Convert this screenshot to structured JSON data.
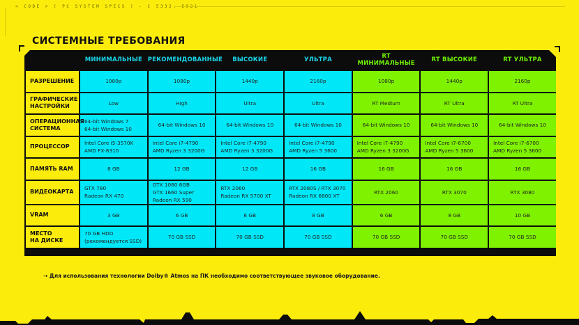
{
  "header_code": "< CODE > ( PC SYSTEM SPECS ) - C 5332. 5921",
  "title": "СИСТЕМНЫЕ ТРЕБОВАНИЯ",
  "colors": {
    "background": "#fcec0c",
    "cyan": "#00e8f8",
    "green": "#7ff200",
    "header_bg": "#0c0c0c"
  },
  "columns": [
    {
      "label": "МИНИМАЛЬНЫЕ",
      "group": "cyan"
    },
    {
      "label": "РЕКОМЕНДОВАННЫЕ",
      "group": "cyan"
    },
    {
      "label": "ВЫСОКИЕ",
      "group": "cyan"
    },
    {
      "label": "УЛЬТРА",
      "group": "cyan"
    },
    {
      "label": "RT МИНИМАЛЬНЫЕ",
      "group": "green"
    },
    {
      "label": "RT ВЫСОКИЕ",
      "group": "green"
    },
    {
      "label": "RT УЛЬТРА",
      "group": "green"
    }
  ],
  "rows": [
    {
      "label": "РАЗРЕШЕНИЕ",
      "cells": [
        "1080p",
        "1080p",
        "1440p",
        "2160p",
        "1080p",
        "1440p",
        "2160p"
      ]
    },
    {
      "label": "ГРАФИЧЕСКИЕ\nНАСТРОЙКИ",
      "cells": [
        "Low",
        "High",
        "Ultra",
        "Ultra",
        "RT Medium",
        "RT Ultra",
        "RT Ultra"
      ]
    },
    {
      "label": "ОПЕРАЦИОННАЯ\nСИСТЕМА",
      "cells": [
        "64-bit Windows 7\n64-bit Windows 10",
        "64-bit Windows 10",
        "64-bit Windows 10",
        "64-bit Windows 10",
        "64-bit Windows 10",
        "64-bit Windows 10",
        "64-bit Windows 10"
      ]
    },
    {
      "label": "ПРОЦЕССОР",
      "cells": [
        "Intel Core i5-3570K\nAMD FX-8310",
        "Intel Core i7-4790\nAMD Ryzen 3 3200G",
        "Intel Core i7-4790\nAMD Ryzen 3 3200G",
        "Intel Core i7-4790\nAMD Ryzen 5 3600",
        "Intel Core i7-4790\nAMD Ryzen 3 3200G",
        "Intel Core i7-6700\nAMD Ryzen 5 3600",
        "Intel Core i7-6700\nAMD Ryzen 5 3600"
      ]
    },
    {
      "label": "ПАМЯТЬ RAM",
      "cells": [
        "8 GB",
        "12 GB",
        "12 GB",
        "16 GB",
        "16 GB",
        "16 GB",
        "16 GB"
      ]
    },
    {
      "label": "ВИДЕОКАРТА",
      "cells": [
        "GTX 780\nRadeon RX 470",
        "GTX 1060 6GB\nGTX 1660 Super\nRadeon RX 590",
        "RTX 2060\nRadeon RX 5700 XT",
        "RTX 2080S / RTX 3070\nRadeon RX 6800 XT",
        "RTX 2060",
        "RTX 3070",
        "RTX 3080"
      ]
    },
    {
      "label": "VRAM",
      "cells": [
        "3 GB",
        "6 GB",
        "6 GB",
        "8 GB",
        "6 GB",
        "8 GB",
        "10 GB"
      ]
    },
    {
      "label": "МЕСТО\nНА ДИСКЕ",
      "cells": [
        "70 GB HDD\n(рекомендуется SSD)",
        "70 GB SSD",
        "70 GB SSD",
        "70 GB SSD",
        "70 GB SSD",
        "70 GB SSD",
        "70 GB SSD"
      ]
    }
  ],
  "note": "→ Для использования технологии Dolby® Atmos на ПК необходимо соответствующее звуковое оборудование."
}
